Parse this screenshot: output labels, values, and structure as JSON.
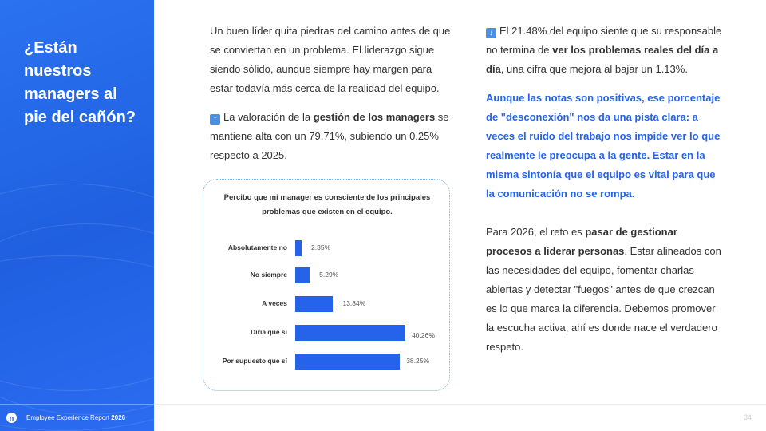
{
  "sidebar": {
    "title": "¿Están nuestros managers al pie del cañón?",
    "footer_prefix": "Employee Experience Report ",
    "footer_year": "2026",
    "logo": "n"
  },
  "left": {
    "p1": "Un buen líder quita piedras del camino antes de que se conviertan en un problema. El liderazgo sigue siendo sólido, aunque siempre hay margen para estar todavía más cerca de la realidad del equipo.",
    "p2_icon": "arrow-up-icon",
    "p2_a": "La valoración de la ",
    "p2_b": "gestión de los managers",
    "p2_c": " se mantiene alta con un 79.71%, subiendo un 0.25% respecto a 2025."
  },
  "right": {
    "p1_icon": "arrow-down-icon",
    "p1_a": "El 21.48% del equipo siente que su responsable no termina de ",
    "p1_b": "ver los problemas reales del día a día",
    "p1_c": ", una cifra que mejora al bajar un 1.13%.",
    "p2": "Aunque las notas son positivas, ese porcentaje de \"desconexión\" nos da una pista clara: a veces el ruido del trabajo nos impide ver lo que realmente le preocupa a la gente. Estar en la misma sintonía que el equipo es vital para que la comunicación no se rompa.",
    "p3_a": "Para 2026, el reto es ",
    "p3_b": "pasar de gestionar procesos a liderar personas",
    "p3_c": ". Estar alineados con las necesidades del equipo, fomentar charlas abiertas y detectar \"fuegos\" antes de que crezcan es lo que marca la diferencia. Debemos promover la escucha activa; ahí es donde nace el verdadero respeto."
  },
  "chart_data": {
    "type": "bar",
    "orientation": "horizontal",
    "title": "Percibo que mi manager es consciente de los principales problemas que existen en el equipo.",
    "categories": [
      "Absolutamente no",
      "No siempre",
      "A veces",
      "Diría que sí",
      "Por supuesto que  sí"
    ],
    "values": [
      2.35,
      5.29,
      13.84,
      40.26,
      38.25
    ],
    "labels": [
      "2.35%",
      "5.29%",
      "13.84%",
      "40.26%",
      "38.25%"
    ],
    "color": "#2463ea",
    "grid": false
  },
  "page_number": "34"
}
